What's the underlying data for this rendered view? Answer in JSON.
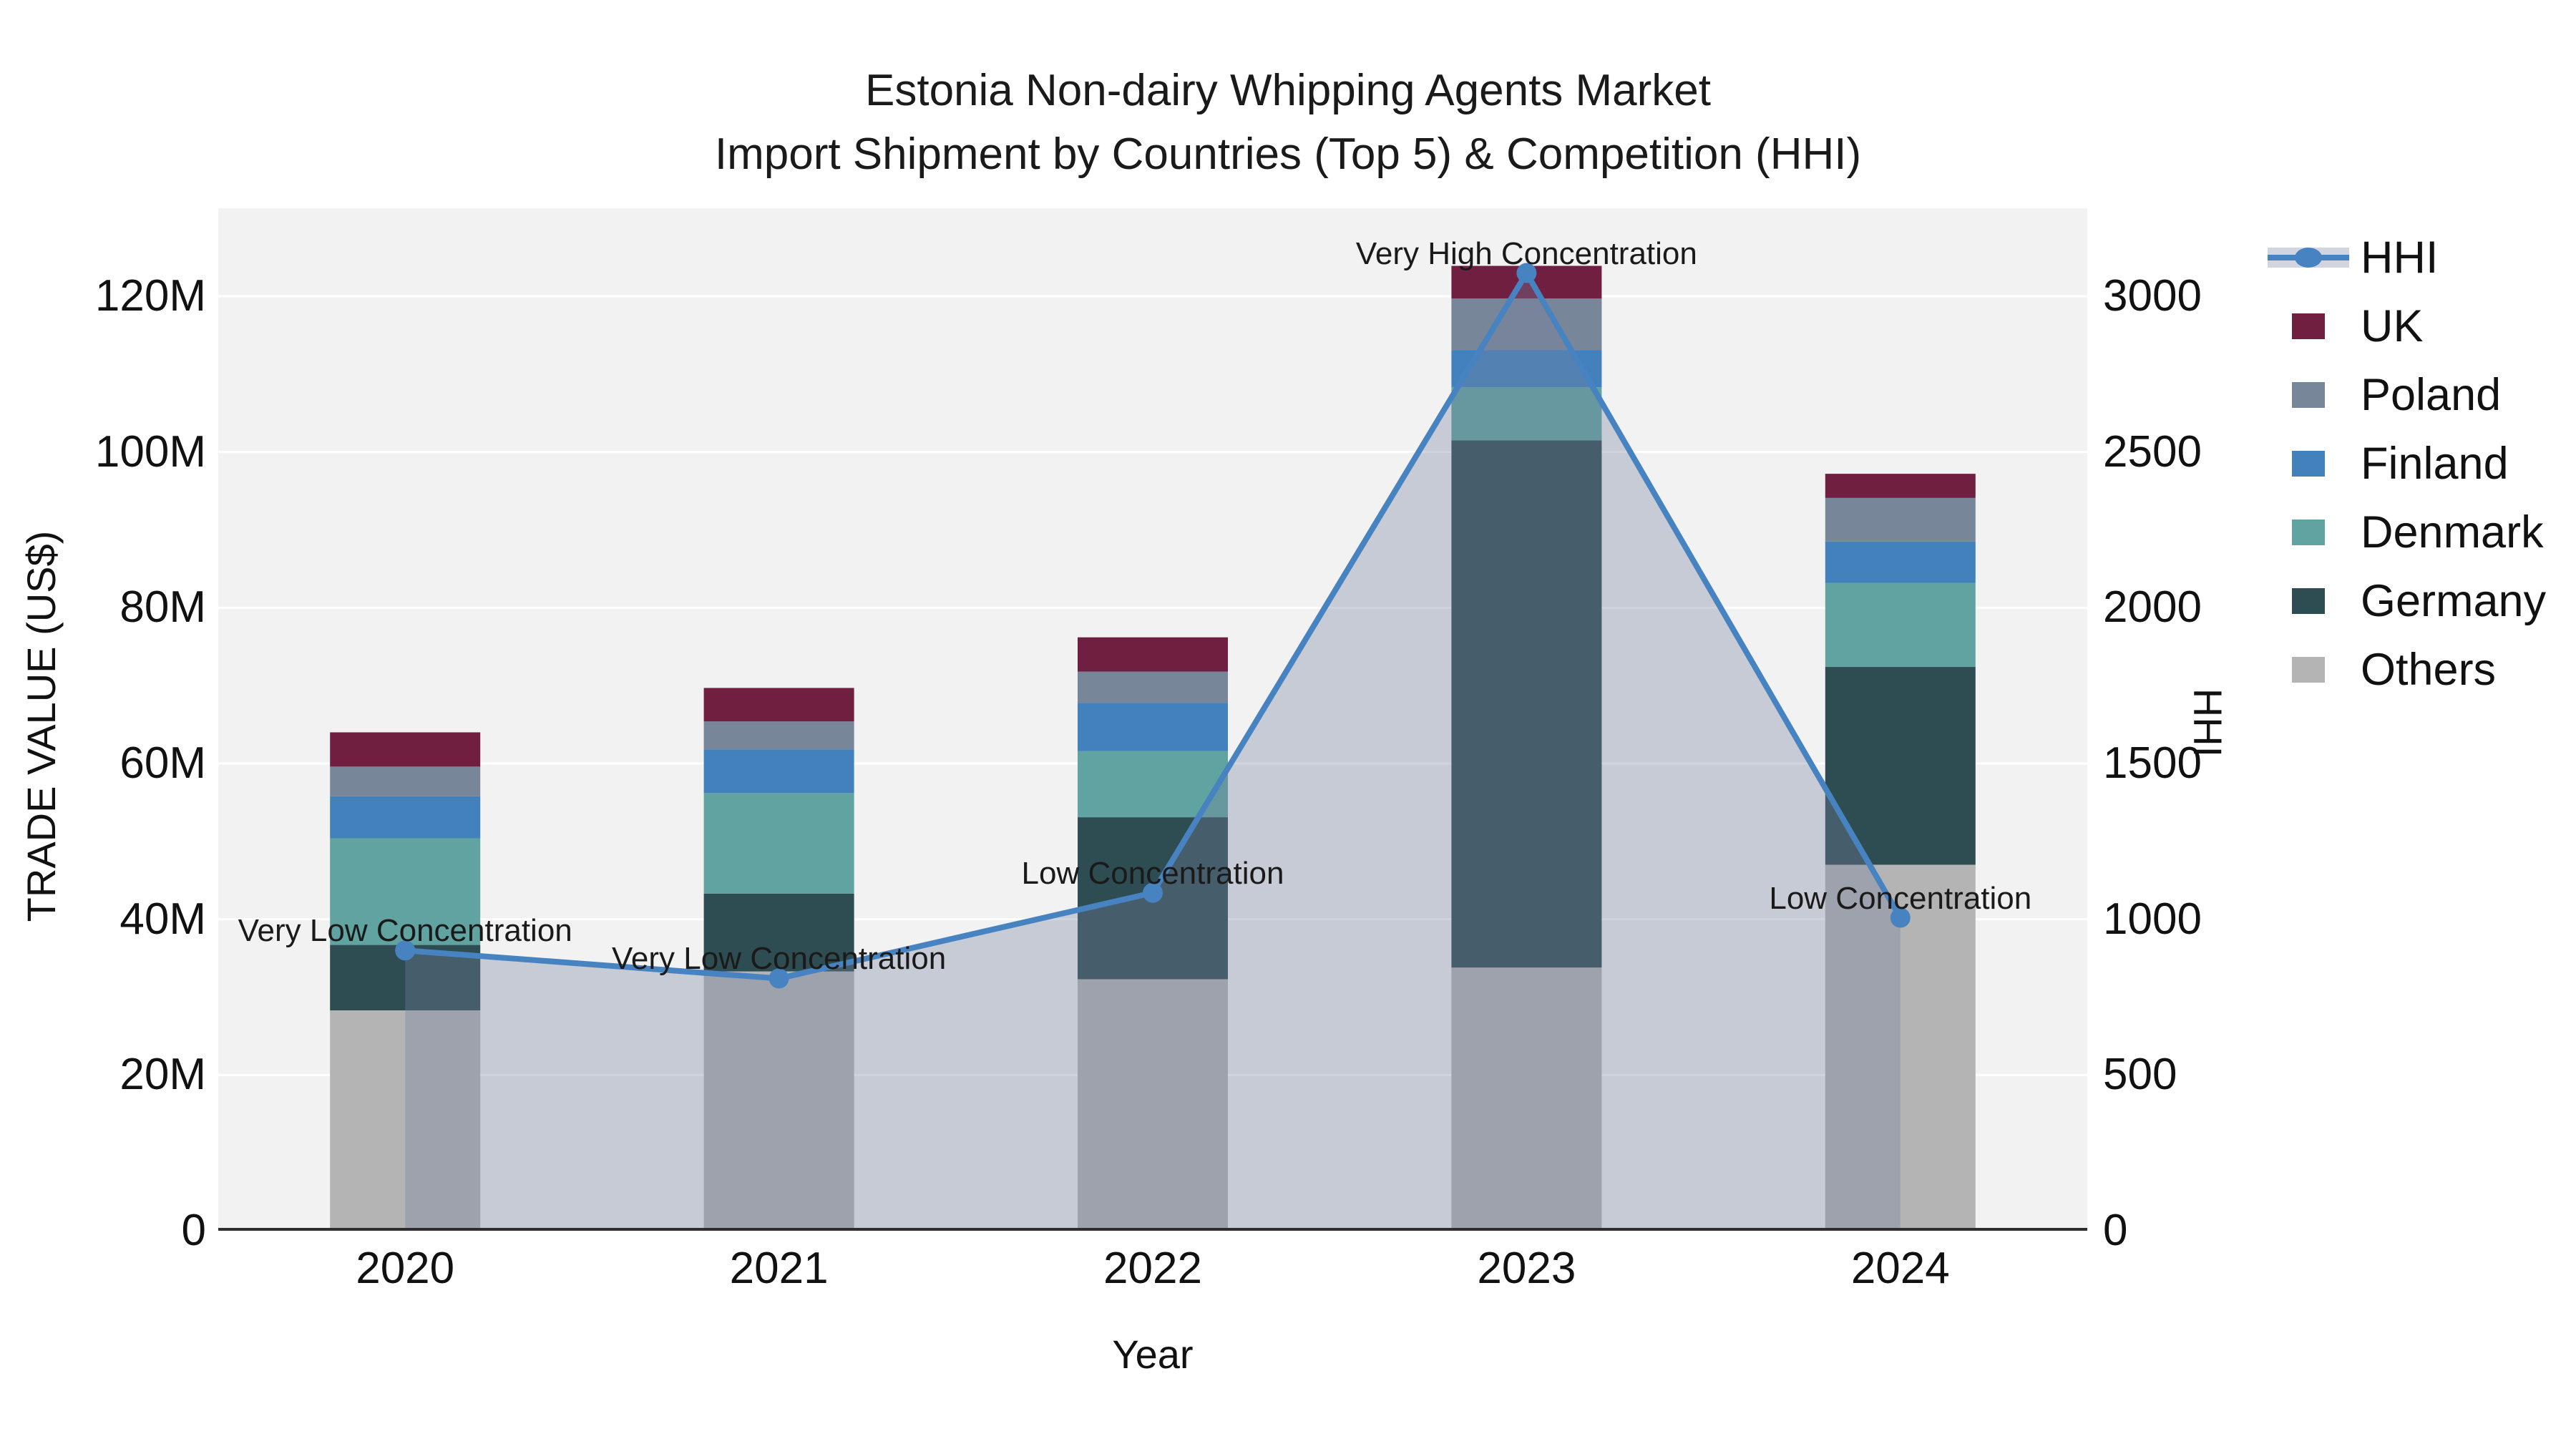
{
  "title": {
    "line1": "Estonia Non-dairy Whipping Agents Market",
    "line2": "Import Shipment by Countries (Top 5) & Competition (HHI)"
  },
  "axes": {
    "x": {
      "title": "Year"
    },
    "y_left": {
      "title": "TRADE VALUE (US$)",
      "tick_labels": [
        "0",
        "20M",
        "40M",
        "60M",
        "80M",
        "100M",
        "120M"
      ],
      "tick_values": [
        0,
        20,
        40,
        60,
        80,
        100,
        120
      ],
      "range": [
        0,
        131.3
      ]
    },
    "y_right": {
      "title": "HHI",
      "tick_labels": [
        "0",
        "500",
        "1000",
        "1500",
        "2000",
        "2500",
        "3000"
      ],
      "tick_values": [
        0,
        500,
        1000,
        1500,
        2000,
        2500,
        3000
      ],
      "range": [
        0,
        3283
      ]
    }
  },
  "legend": {
    "position": "right",
    "items": [
      {
        "label": "HHI"
      },
      {
        "label": "UK"
      },
      {
        "label": "Poland"
      },
      {
        "label": "Finland"
      },
      {
        "label": "Denmark"
      },
      {
        "label": "Germany"
      },
      {
        "label": "Others"
      }
    ]
  },
  "chart_data": {
    "type": "bar",
    "subtype": "stacked-bars-with-hhi-line-overlay",
    "title": "Estonia Non-dairy Whipping Agents Market — Import Shipment by Countries (Top 5) & Competition (HHI)",
    "xlabel": "Year",
    "ylabel": "TRADE VALUE (US$)",
    "ylabel_right": "HHI",
    "categories": [
      "2020",
      "2021",
      "2022",
      "2023",
      "2024"
    ],
    "series": [
      {
        "name": "Others",
        "color": "#b4b4b4",
        "values": [
          28.3,
          33.3,
          32.3,
          33.8,
          47.0
        ]
      },
      {
        "name": "Germany",
        "color": "#2e4d52",
        "values": [
          8.4,
          10.0,
          20.8,
          67.7,
          25.4
        ]
      },
      {
        "name": "Denmark",
        "color": "#60a3a0",
        "values": [
          13.7,
          12.9,
          8.5,
          6.8,
          10.8
        ]
      },
      {
        "name": "Finland",
        "color": "#4281bc",
        "values": [
          5.4,
          5.6,
          6.2,
          4.8,
          5.3
        ]
      },
      {
        "name": "Poland",
        "color": "#78869a",
        "values": [
          3.8,
          3.6,
          4.0,
          6.6,
          5.6
        ]
      },
      {
        "name": "UK",
        "color": "#701f40",
        "values": [
          4.4,
          4.3,
          4.4,
          4.2,
          3.1
        ]
      }
    ],
    "bar_totals_million_usd": [
      64.0,
      69.7,
      76.2,
      123.9,
      97.2
    ],
    "line_series": {
      "name": "HHI",
      "axis": "right",
      "color": "#4883c1",
      "area_fill": "rgba(118,130,158,0.34)",
      "values": [
        900,
        810,
        1085,
        3075,
        1005
      ],
      "annotations": [
        "Very Low Concentration",
        "Very Low Concentration",
        "Low Concentration",
        "Very High Concentration",
        "Low Concentration"
      ]
    },
    "units": "values in million US$ (left axis), HHI index (right axis)",
    "ylim_left": [
      0,
      131.3
    ],
    "ylim_right": [
      0,
      3283
    ],
    "grid": true,
    "legend_position": "right"
  },
  "colors": {
    "plot_bg": "#f2f2f2",
    "figure_bg": "#ffffff",
    "gridline": "#ffffff",
    "axis_line": "#2e2e2e",
    "text": "#111111",
    "hhi_line": "#4883c1",
    "hhi_area": "rgba(118,130,158,0.34)",
    "legend_hhi_band": "#d0d5df"
  }
}
